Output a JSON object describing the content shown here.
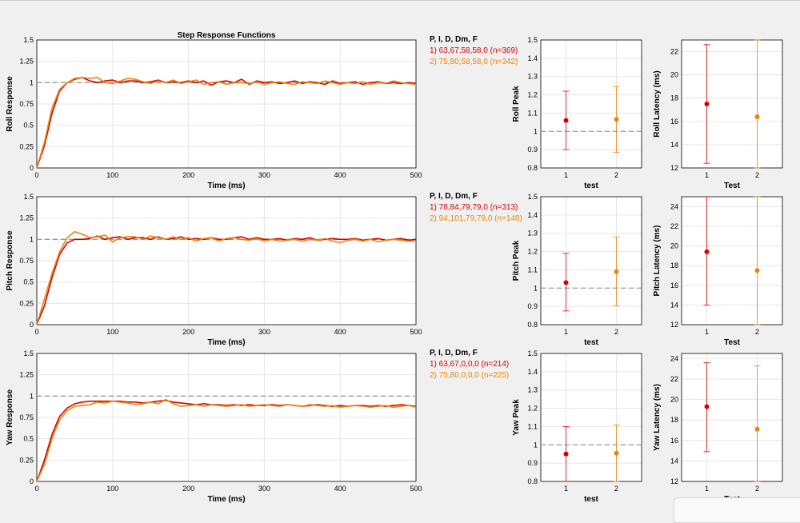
{
  "title": "Step Response Functions",
  "colors": {
    "run1": "#d40000",
    "run2": "#e8850a",
    "reference": "#9a9a9a",
    "axis": "#000000",
    "grid": "#e6e6e6"
  },
  "rows": [
    {
      "axis": "Roll",
      "step": {
        "type": "line",
        "xlabel": "Time (ms)",
        "ylabel": "Roll Response",
        "xlim": [
          0,
          500
        ],
        "ylim": [
          0,
          1.5
        ],
        "xticks": [
          "0",
          "100",
          "200",
          "300",
          "400",
          "500"
        ],
        "yticks": [
          "0",
          "0.25",
          "0.5",
          "0.75",
          "1",
          "1.25",
          "1.5"
        ],
        "reference_y": 1,
        "legend_title": "P, I, D, Dm, F",
        "series": [
          {
            "name": "1) 63,67,58,58,0  (n=369)",
            "x": [
              0,
              10,
              20,
              30,
              40,
              50,
              60,
              70,
              80,
              90,
              100,
              110,
              120,
              130,
              140,
              150,
              160,
              170,
              180,
              190,
              200,
              210,
              220,
              230,
              240,
              250,
              260,
              270,
              280,
              290,
              300,
              310,
              320,
              330,
              340,
              350,
              360,
              370,
              380,
              390,
              400,
              410,
              420,
              430,
              440,
              450,
              460,
              470,
              480,
              490,
              500
            ],
            "y": [
              0,
              0.26,
              0.64,
              0.9,
              1.0,
              1.04,
              1.06,
              1.02,
              1.0,
              1.02,
              1.03,
              1.0,
              1.02,
              1.02,
              1.0,
              1.01,
              1.03,
              1.0,
              1.01,
              1.0,
              1.02,
              1.0,
              1.02,
              0.97,
              1.01,
              1.02,
              1.0,
              1.04,
              0.98,
              1.02,
              1.0,
              1.01,
              0.99,
              1.0,
              1.02,
              0.99,
              1.01,
              1.0,
              0.98,
              1.02,
              0.99,
              1.0,
              1.01,
              0.98,
              1.0,
              1.01,
              0.99,
              1.0,
              0.99,
              1.0,
              0.99
            ]
          },
          {
            "name": "2) 75,80,58,58,0  (n=342)",
            "x": [
              0,
              10,
              20,
              30,
              40,
              50,
              60,
              70,
              80,
              90,
              100,
              110,
              120,
              130,
              140,
              150,
              160,
              170,
              180,
              190,
              200,
              210,
              220,
              230,
              240,
              250,
              260,
              270,
              280,
              290,
              300,
              310,
              320,
              330,
              340,
              350,
              360,
              370,
              380,
              390,
              400,
              410,
              420,
              430,
              440,
              450,
              460,
              470,
              480,
              490,
              500
            ],
            "y": [
              0,
              0.3,
              0.7,
              0.92,
              1.0,
              1.05,
              1.06,
              1.05,
              1.06,
              1.0,
              0.99,
              1.02,
              1.05,
              1.04,
              1.01,
              0.99,
              1.02,
              1.0,
              1.03,
              0.99,
              1.01,
              1.03,
              0.98,
              1.0,
              1.01,
              0.98,
              1.0,
              1.0,
              0.99,
              1.01,
              0.98,
              1.0,
              1.01,
              0.99,
              0.98,
              1.01,
              1.0,
              0.99,
              1.02,
              1.0,
              0.98,
              1.0,
              0.99,
              1.01,
              0.98,
              1.0,
              0.99,
              1.02,
              1.0,
              0.99,
              0.98
            ]
          }
        ]
      },
      "peak": {
        "type": "scatter",
        "xlabel": "test",
        "ylabel": "Roll Peak",
        "xlim": [
          0.5,
          2.5
        ],
        "ylim": [
          0.8,
          1.5
        ],
        "xticks": [
          "1",
          "2"
        ],
        "yticks": [
          "0.8",
          "0.9",
          "1",
          "1.1",
          "1.2",
          "1.3",
          "1.4",
          "1.5"
        ],
        "reference_y": 1,
        "points": [
          {
            "x": 1,
            "y": 1.06,
            "low": 0.9,
            "high": 1.22
          },
          {
            "x": 2,
            "y": 1.065,
            "low": 0.885,
            "high": 1.245
          }
        ]
      },
      "latency": {
        "type": "scatter",
        "xlabel": "Test",
        "ylabel": "Roll Latency (ms)",
        "xlim": [
          0.5,
          2.5
        ],
        "ylim": [
          12,
          23
        ],
        "xticks": [
          "1",
          "2"
        ],
        "yticks": [
          "12",
          "14",
          "16",
          "18",
          "20",
          "22"
        ],
        "points": [
          {
            "x": 1,
            "y": 17.5,
            "low": 12.4,
            "high": 22.6
          },
          {
            "x": 2,
            "y": 16.4,
            "low": 12,
            "high": 23
          }
        ]
      }
    },
    {
      "axis": "Pitch",
      "step": {
        "type": "line",
        "xlabel": "Time (ms)",
        "ylabel": "Pitch Response",
        "xlim": [
          0,
          500
        ],
        "ylim": [
          0,
          1.5
        ],
        "xticks": [
          "0",
          "100",
          "200",
          "300",
          "400",
          "500"
        ],
        "yticks": [
          "0",
          "0.25",
          "0.5",
          "0.75",
          "1",
          "1.25",
          "1.5"
        ],
        "reference_y": 1,
        "legend_title": "P, I, D, Dm, F",
        "series": [
          {
            "name": "1) 78,84,79,79,0  (n=313)",
            "x": [
              0,
              10,
              20,
              30,
              40,
              50,
              60,
              70,
              80,
              90,
              100,
              110,
              120,
              130,
              140,
              150,
              160,
              170,
              180,
              190,
              200,
              210,
              220,
              230,
              240,
              250,
              260,
              270,
              280,
              290,
              300,
              310,
              320,
              330,
              340,
              350,
              360,
              370,
              380,
              390,
              400,
              410,
              420,
              430,
              440,
              450,
              460,
              470,
              480,
              490,
              500
            ],
            "y": [
              0,
              0.22,
              0.55,
              0.82,
              0.96,
              1.0,
              1.0,
              1.01,
              1.04,
              1.0,
              1.02,
              1.03,
              1.0,
              1.02,
              1.02,
              1.0,
              1.03,
              1.0,
              1.01,
              1.03,
              1.0,
              1.01,
              1.0,
              1.02,
              1.0,
              1.0,
              1.02,
              1.03,
              1.0,
              1.02,
              1.0,
              1.0,
              1.01,
              0.99,
              1.01,
              1.0,
              1.02,
              0.99,
              1.0,
              1.01,
              1.0,
              1.0,
              1.01,
              0.99,
              1.0,
              1.01,
              0.99,
              1.0,
              1.01,
              0.99,
              1.0
            ]
          },
          {
            "name": "2) 94,101,79,79,0  (n=148)",
            "x": [
              0,
              10,
              20,
              30,
              40,
              50,
              60,
              70,
              80,
              90,
              100,
              110,
              120,
              130,
              140,
              150,
              160,
              170,
              180,
              190,
              200,
              210,
              220,
              230,
              240,
              250,
              260,
              270,
              280,
              290,
              300,
              310,
              320,
              330,
              340,
              350,
              360,
              370,
              380,
              390,
              400,
              410,
              420,
              430,
              440,
              450,
              460,
              470,
              480,
              490,
              500
            ],
            "y": [
              0,
              0.3,
              0.6,
              0.85,
              1.02,
              1.09,
              1.06,
              1.02,
              1.03,
              1.05,
              0.97,
              1.02,
              1.03,
              1.03,
              1.0,
              1.04,
              1.02,
              1.0,
              1.03,
              1.0,
              1.02,
              0.98,
              1.01,
              1.02,
              0.98,
              1.01,
              1.02,
              1.0,
              0.99,
              1.01,
              0.98,
              1.0,
              0.98,
              0.99,
              1.0,
              0.98,
              1.0,
              0.99,
              1.01,
              0.98,
              0.96,
              0.99,
              1.0,
              0.98,
              1.0,
              0.97,
              0.99,
              1.0,
              0.99,
              0.98,
              0.98
            ]
          }
        ]
      },
      "peak": {
        "type": "scatter",
        "xlabel": "test",
        "ylabel": "Pitch Peak",
        "xlim": [
          0.5,
          2.5
        ],
        "ylim": [
          0.8,
          1.5
        ],
        "xticks": [
          "1",
          "2"
        ],
        "yticks": [
          "0.8",
          "0.9",
          "1",
          "1.1",
          "1.2",
          "1.3",
          "1.4",
          "1.5"
        ],
        "reference_y": 1,
        "points": [
          {
            "x": 1,
            "y": 1.03,
            "low": 0.875,
            "high": 1.19
          },
          {
            "x": 2,
            "y": 1.09,
            "low": 0.905,
            "high": 1.28
          }
        ]
      },
      "latency": {
        "type": "scatter",
        "xlabel": "Test",
        "ylabel": "Pitch Latency (ms)",
        "xlim": [
          0.5,
          2.5
        ],
        "ylim": [
          12,
          25
        ],
        "xticks": [
          "1",
          "2"
        ],
        "yticks": [
          "12",
          "14",
          "16",
          "18",
          "20",
          "22",
          "24"
        ],
        "points": [
          {
            "x": 1,
            "y": 19.4,
            "low": 14,
            "high": 25
          },
          {
            "x": 2,
            "y": 17.5,
            "low": 12,
            "high": 25
          }
        ]
      }
    },
    {
      "axis": "Yaw",
      "step": {
        "type": "line",
        "xlabel": "Time (ms)",
        "ylabel": "Yaw Response",
        "xlim": [
          0,
          500
        ],
        "ylim": [
          0,
          1.5
        ],
        "xticks": [
          "0",
          "100",
          "200",
          "300",
          "400",
          "500"
        ],
        "yticks": [
          "0",
          "0.25",
          "0.5",
          "0.75",
          "1",
          "1.25",
          "1.5"
        ],
        "reference_y": 1,
        "legend_title": "P, I, D, Dm, F",
        "series": [
          {
            "name": "1) 63,67,0,0,0  (n=214)",
            "x": [
              0,
              10,
              20,
              30,
              40,
              50,
              60,
              70,
              80,
              90,
              100,
              110,
              120,
              130,
              140,
              150,
              160,
              170,
              180,
              190,
              200,
              210,
              220,
              230,
              240,
              250,
              260,
              270,
              280,
              290,
              300,
              310,
              320,
              330,
              340,
              350,
              360,
              370,
              380,
              390,
              400,
              410,
              420,
              430,
              440,
              450,
              460,
              470,
              480,
              490,
              500
            ],
            "y": [
              0,
              0.25,
              0.55,
              0.76,
              0.86,
              0.91,
              0.93,
              0.94,
              0.94,
              0.94,
              0.94,
              0.94,
              0.93,
              0.93,
              0.92,
              0.93,
              0.94,
              0.95,
              0.93,
              0.92,
              0.91,
              0.9,
              0.91,
              0.9,
              0.9,
              0.89,
              0.9,
              0.89,
              0.9,
              0.89,
              0.89,
              0.9,
              0.89,
              0.9,
              0.89,
              0.88,
              0.89,
              0.9,
              0.89,
              0.88,
              0.89,
              0.88,
              0.89,
              0.89,
              0.88,
              0.89,
              0.88,
              0.89,
              0.9,
              0.89,
              0.88
            ]
          },
          {
            "name": "2) 75,80,0,0,0  (n=225)",
            "x": [
              0,
              10,
              20,
              30,
              40,
              50,
              60,
              70,
              80,
              90,
              100,
              110,
              120,
              130,
              140,
              150,
              160,
              170,
              180,
              190,
              200,
              210,
              220,
              230,
              240,
              250,
              260,
              270,
              280,
              290,
              300,
              310,
              320,
              330,
              340,
              350,
              360,
              370,
              380,
              390,
              400,
              410,
              420,
              430,
              440,
              450,
              460,
              470,
              480,
              490,
              500
            ],
            "y": [
              0,
              0.2,
              0.5,
              0.72,
              0.83,
              0.88,
              0.89,
              0.9,
              0.93,
              0.92,
              0.94,
              0.93,
              0.92,
              0.9,
              0.91,
              0.93,
              0.91,
              0.96,
              0.91,
              0.88,
              0.89,
              0.9,
              0.88,
              0.9,
              0.89,
              0.88,
              0.89,
              0.9,
              0.88,
              0.89,
              0.9,
              0.89,
              0.88,
              0.9,
              0.89,
              0.88,
              0.9,
              0.89,
              0.88,
              0.89,
              0.87,
              0.88,
              0.89,
              0.88,
              0.87,
              0.88,
              0.89,
              0.87,
              0.88,
              0.89,
              0.87
            ]
          }
        ]
      },
      "peak": {
        "type": "scatter",
        "xlabel": "test",
        "ylabel": "Yaw Peak",
        "xlim": [
          0.5,
          2.5
        ],
        "ylim": [
          0.8,
          1.5
        ],
        "xticks": [
          "1",
          "2"
        ],
        "yticks": [
          "0.8",
          "0.9",
          "1",
          "1.1",
          "1.2",
          "1.3",
          "1.4",
          "1.5"
        ],
        "reference_y": 1,
        "points": [
          {
            "x": 1,
            "y": 0.95,
            "low": 0.8,
            "high": 1.1
          },
          {
            "x": 2,
            "y": 0.955,
            "low": 0.8,
            "high": 1.11
          }
        ]
      },
      "latency": {
        "type": "scatter",
        "xlabel": "Test",
        "ylabel": "Yaw Latency (ms)",
        "xlim": [
          0.5,
          2.5
        ],
        "ylim": [
          12,
          24.5
        ],
        "xticks": [
          "1",
          "2"
        ],
        "yticks": [
          "12",
          "14",
          "16",
          "18",
          "20",
          "22",
          "24"
        ],
        "points": [
          {
            "x": 1,
            "y": 19.3,
            "low": 14.9,
            "high": 23.6
          },
          {
            "x": 2,
            "y": 17.1,
            "low": 12,
            "high": 23.3
          }
        ]
      }
    }
  ]
}
